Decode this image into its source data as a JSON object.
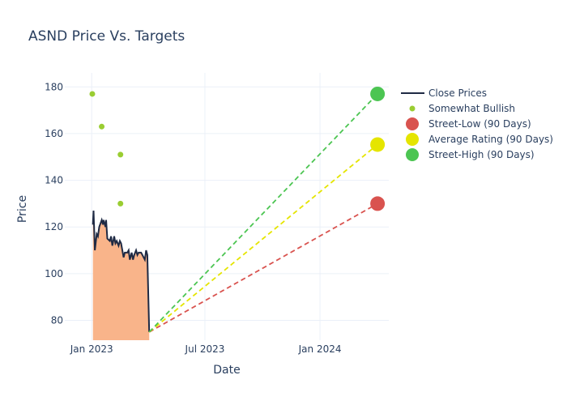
{
  "chart_data": {
    "type": "line",
    "title": "ASND Price Vs. Targets",
    "xlabel": "Date",
    "ylabel": "Price",
    "xlim": [
      "2022-11-19",
      "2024-04-20"
    ],
    "ylim": [
      71.5,
      186
    ],
    "yticks": [
      80,
      100,
      120,
      140,
      160,
      180
    ],
    "xticks": [
      {
        "date": "2023-01-01",
        "label": "Jan 2023"
      },
      {
        "date": "2023-07-01",
        "label": "Jul 2023"
      },
      {
        "date": "2024-01-01",
        "label": "Jan 2024"
      }
    ],
    "grid": true,
    "legend_position": "top-right",
    "close_prices": {
      "name": "Close Prices",
      "color": "#1f2a44",
      "fill": "#f9b48a",
      "x": [
        "2023-01-03",
        "2023-01-04",
        "2023-01-06",
        "2023-01-09",
        "2023-01-11",
        "2023-01-13",
        "2023-01-17",
        "2023-01-19",
        "2023-01-20",
        "2023-01-23",
        "2023-01-24",
        "2023-01-26",
        "2023-01-30",
        "2023-02-01",
        "2023-02-03",
        "2023-02-06",
        "2023-02-08",
        "2023-02-10",
        "2023-02-13",
        "2023-02-15",
        "2023-02-17",
        "2023-02-21",
        "2023-02-23",
        "2023-02-27",
        "2023-03-01",
        "2023-03-03",
        "2023-03-06",
        "2023-03-08",
        "2023-03-10",
        "2023-03-13",
        "2023-03-15",
        "2023-03-17",
        "2023-03-21",
        "2023-03-23",
        "2023-03-27",
        "2023-03-29",
        "2023-03-31",
        "2023-04-03"
      ],
      "y": [
        121,
        127,
        110,
        117,
        116,
        120,
        123,
        121,
        123,
        120,
        123,
        115,
        114,
        116,
        112,
        116,
        113,
        114,
        112,
        114,
        113,
        107,
        109,
        109,
        110,
        106,
        109,
        106,
        108,
        110,
        108,
        109,
        109,
        108,
        106,
        110,
        108,
        75
      ]
    },
    "somewhat_bullish": {
      "name": "Somewhat Bullish",
      "color": "#9acd32",
      "x": [
        "2023-01-02",
        "2023-01-17",
        "2023-02-16",
        "2023-02-16"
      ],
      "y": [
        177,
        163,
        151,
        130
      ]
    },
    "targets": [
      {
        "name": "Street-Low (90 Days)",
        "color": "#d9534f",
        "from": [
          "2023-04-03",
          75
        ],
        "to": [
          "2024-04-02",
          130
        ]
      },
      {
        "name": "Average Rating (90 Days)",
        "color": "#e5e500",
        "from": [
          "2023-04-03",
          75
        ],
        "to": [
          "2024-04-02",
          155.3
        ]
      },
      {
        "name": "Street-High (90 Days)",
        "color": "#4cc552",
        "from": [
          "2023-04-03",
          75
        ],
        "to": [
          "2024-04-02",
          177
        ]
      }
    ]
  }
}
